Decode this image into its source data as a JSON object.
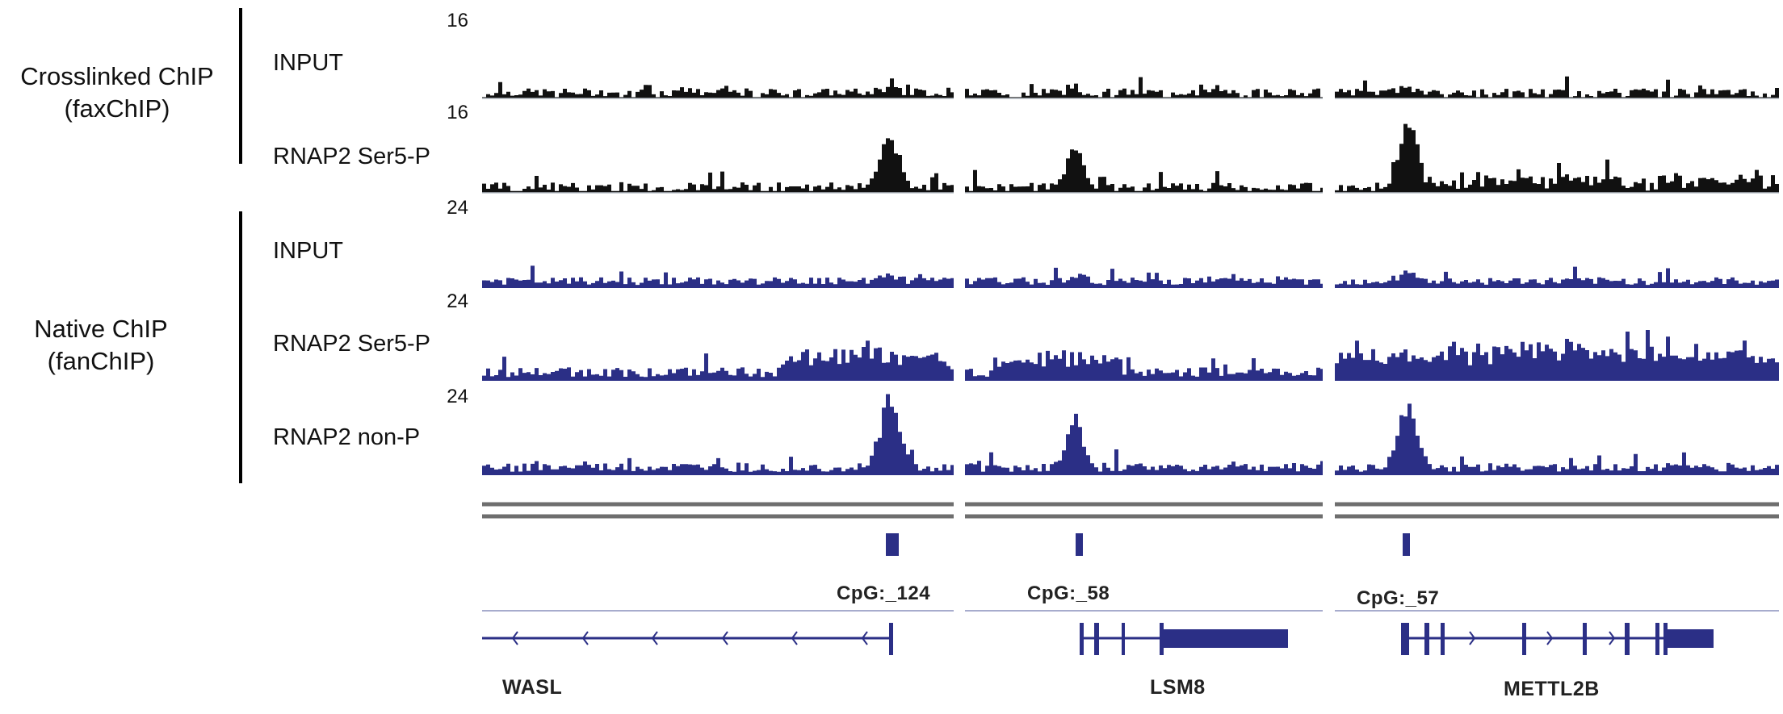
{
  "groups": [
    {
      "label_line1": "Crosslinked ChIP",
      "label_line2": "(faxChIP)"
    },
    {
      "label_line1": "Native ChIP",
      "label_line2": "(fanChIP)"
    }
  ],
  "tracks": [
    {
      "label": "INPUT",
      "scale": "16",
      "color": "#111111"
    },
    {
      "label": "RNAP2 Ser5-P",
      "scale": "16",
      "color": "#111111"
    },
    {
      "label": "INPUT",
      "scale": "24",
      "color": "#2b2f86"
    },
    {
      "label": "RNAP2 Ser5-P",
      "scale": "24",
      "color": "#2b2f86"
    },
    {
      "label": "RNAP2 non-P",
      "scale": "24",
      "color": "#2b2f86"
    }
  ],
  "loci": [
    {
      "gene": "WASL",
      "cpg": "CpG:_124",
      "strand": "-"
    },
    {
      "gene": "LSM8",
      "cpg": "CpG:_58",
      "strand": "+"
    },
    {
      "gene": "METTL2B",
      "cpg": "CpG:_57",
      "strand": "+"
    }
  ],
  "colors": {
    "crosslinked": "#111111",
    "native": "#2b2f86",
    "gene": "#2b2f86",
    "divider": "#6e6e6e"
  },
  "chart_data": {
    "type": "area",
    "title": "",
    "description": "Genome browser coverage tracks (ChIP-seq) at three loci",
    "groups": [
      "Crosslinked ChIP (faxChIP)",
      "Native ChIP (fanChIP)"
    ],
    "loci": [
      "WASL",
      "LSM8",
      "METTL2B"
    ],
    "cpg_islands": [
      "CpG:_124",
      "CpG:_58",
      "CpG:_57"
    ],
    "series": [
      {
        "name": "faxChIP INPUT",
        "ymax": 16,
        "peaks": {
          "WASL": 3,
          "LSM8": 3,
          "METTL2B": 2.5
        }
      },
      {
        "name": "faxChIP RNAP2 Ser5-P",
        "ymax": 16,
        "peaks": {
          "WASL": 8,
          "LSM8": 7,
          "METTL2B": 12
        }
      },
      {
        "name": "fanChIP INPUT",
        "ymax": 24,
        "peaks": {
          "WASL": 2,
          "LSM8": 2,
          "METTL2B": 2
        }
      },
      {
        "name": "fanChIP RNAP2 Ser5-P",
        "ymax": 24,
        "peaks": {
          "WASL": 8,
          "LSM8": 7,
          "METTL2B": 10
        }
      },
      {
        "name": "fanChIP RNAP2 non-P",
        "ymax": 24,
        "peaks": {
          "WASL": 17,
          "LSM8": 14,
          "METTL2B": 17
        }
      }
    ],
    "xlabel": "",
    "ylabel": "",
    "grid": false,
    "legend": "none"
  }
}
